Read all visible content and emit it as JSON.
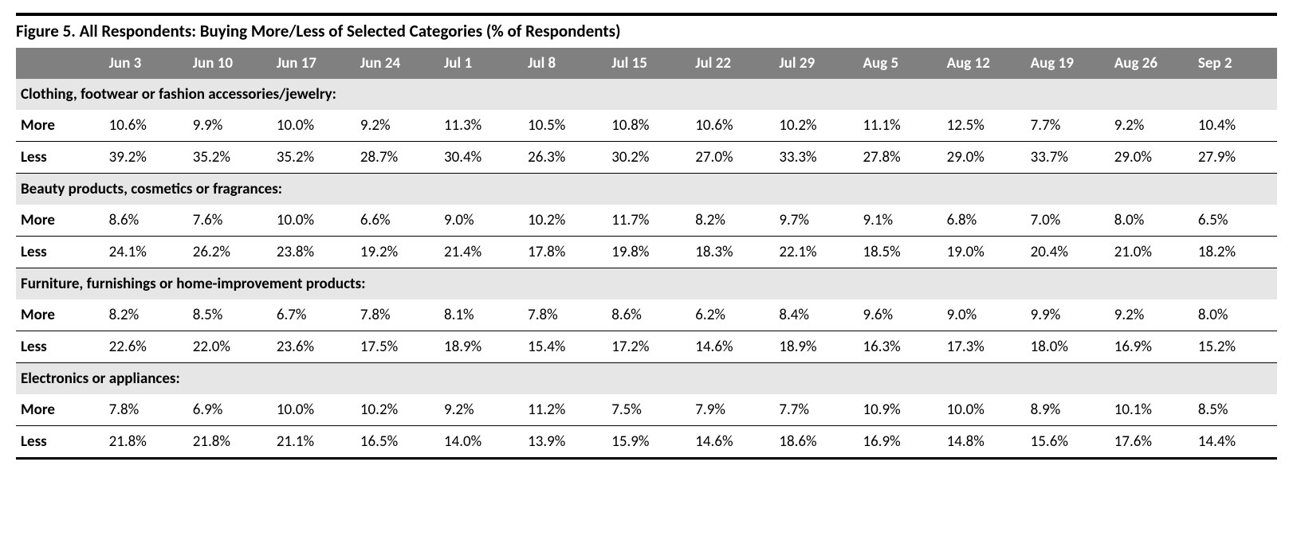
{
  "title": "Figure 5. All Respondents: Buying More/Less of Selected Categories (% of Respondents)",
  "colors": {
    "header_bg": "#808080",
    "header_fg": "#ffffff",
    "section_bg": "#e6e6e6",
    "border": "#000000",
    "text": "#000000",
    "page_bg": "#ffffff"
  },
  "columns": [
    "",
    "Jun 3",
    "Jun 10",
    "Jun 17",
    "Jun 24",
    "Jul 1",
    "Jul 8",
    "Jul 15",
    "Jul 22",
    "Jul 29",
    "Aug 5",
    "Aug 12",
    "Aug 19",
    "Aug 26",
    "Sep 2"
  ],
  "sections": [
    {
      "label": "Clothing, footwear or fashion accessories/jewelry:",
      "rows": [
        {
          "label": "More",
          "values": [
            "10.6%",
            "9.9%",
            "10.0%",
            "9.2%",
            "11.3%",
            "10.5%",
            "10.8%",
            "10.6%",
            "10.2%",
            "11.1%",
            "12.5%",
            "7.7%",
            "9.2%",
            "10.4%"
          ]
        },
        {
          "label": "Less",
          "values": [
            "39.2%",
            "35.2%",
            "35.2%",
            "28.7%",
            "30.4%",
            "26.3%",
            "30.2%",
            "27.0%",
            "33.3%",
            "27.8%",
            "29.0%",
            "33.7%",
            "29.0%",
            "27.9%"
          ]
        }
      ]
    },
    {
      "label": "Beauty products, cosmetics or fragrances:",
      "rows": [
        {
          "label": "More",
          "values": [
            "8.6%",
            "7.6%",
            "10.0%",
            "6.6%",
            "9.0%",
            "10.2%",
            "11.7%",
            "8.2%",
            "9.7%",
            "9.1%",
            "6.8%",
            "7.0%",
            "8.0%",
            "6.5%"
          ]
        },
        {
          "label": "Less",
          "values": [
            "24.1%",
            "26.2%",
            "23.8%",
            "19.2%",
            "21.4%",
            "17.8%",
            "19.8%",
            "18.3%",
            "22.1%",
            "18.5%",
            "19.0%",
            "20.4%",
            "21.0%",
            "18.2%"
          ]
        }
      ]
    },
    {
      "label": "Furniture, furnishings or home-improvement products:",
      "rows": [
        {
          "label": "More",
          "values": [
            "8.2%",
            "8.5%",
            "6.7%",
            "7.8%",
            "8.1%",
            "7.8%",
            "8.6%",
            "6.2%",
            "8.4%",
            "9.6%",
            "9.0%",
            "9.9%",
            "9.2%",
            "8.0%"
          ]
        },
        {
          "label": "Less",
          "values": [
            "22.6%",
            "22.0%",
            "23.6%",
            "17.5%",
            "18.9%",
            "15.4%",
            "17.2%",
            "14.6%",
            "18.9%",
            "16.3%",
            "17.3%",
            "18.0%",
            "16.9%",
            "15.2%"
          ]
        }
      ]
    },
    {
      "label": "Electronics or appliances:",
      "rows": [
        {
          "label": "More",
          "values": [
            "7.8%",
            "6.9%",
            "10.0%",
            "10.2%",
            "9.2%",
            "11.2%",
            "7.5%",
            "7.9%",
            "7.7%",
            "10.9%",
            "10.0%",
            "8.9%",
            "10.1%",
            "8.5%"
          ]
        },
        {
          "label": "Less",
          "values": [
            "21.8%",
            "21.8%",
            "21.1%",
            "16.5%",
            "14.0%",
            "13.9%",
            "15.9%",
            "14.6%",
            "18.6%",
            "16.9%",
            "14.8%",
            "15.6%",
            "17.6%",
            "14.4%"
          ]
        }
      ]
    }
  ]
}
